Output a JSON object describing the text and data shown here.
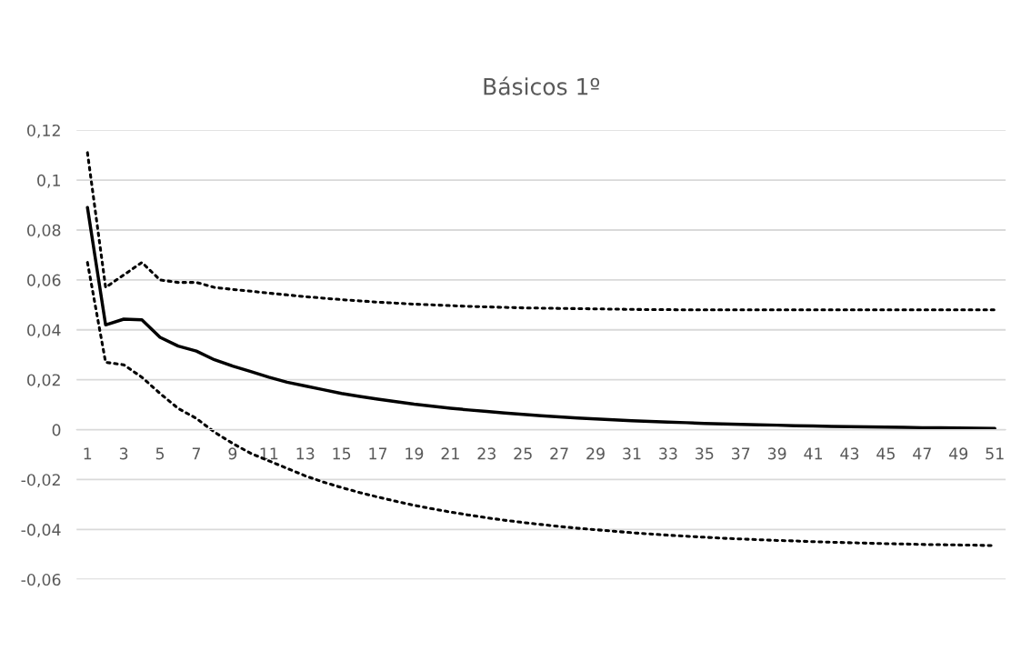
{
  "chart_data": {
    "type": "line",
    "title": "Básicos 1º",
    "categories": [
      "1",
      null,
      "3",
      null,
      "5",
      null,
      "7",
      null,
      "9",
      null,
      "11",
      null,
      "13",
      null,
      "15",
      null,
      "17",
      null,
      "19",
      null,
      "21",
      null,
      "23",
      null,
      "25",
      null,
      "27",
      null,
      "29",
      null,
      "31",
      null,
      "33",
      null,
      "35",
      null,
      "37",
      null,
      "39",
      null,
      "41",
      null,
      "43",
      null,
      "45",
      null,
      "47",
      null,
      "49",
      null,
      "51"
    ],
    "series": [
      {
        "color": "#000000",
        "line_style": "dotted",
        "values": [
          0.111,
          0.057,
          0.062,
          0.067,
          0.06,
          0.059,
          0.059,
          0.057,
          0.0562,
          0.0555,
          0.0547,
          0.054,
          0.0533,
          0.0527,
          0.0521,
          0.0516,
          0.0511,
          0.0507,
          0.0503,
          0.05,
          0.0497,
          0.0494,
          0.0492,
          0.049,
          0.0488,
          0.0487,
          0.0486,
          0.0485,
          0.0484,
          0.0483,
          0.0482,
          0.0481,
          0.0481,
          0.048,
          0.048,
          0.048,
          0.048,
          0.048,
          0.048,
          0.048,
          0.048,
          0.048,
          0.048,
          0.048,
          0.048,
          0.048,
          0.048,
          0.048,
          0.048,
          0.048,
          0.048
        ]
      },
      {
        "color": "#000000",
        "line_style": "solid",
        "values": [
          0.089,
          0.042,
          0.0443,
          0.044,
          0.037,
          0.0335,
          0.0315,
          0.028,
          0.0255,
          0.0233,
          0.021,
          0.019,
          0.0175,
          0.016,
          0.0145,
          0.0133,
          0.0122,
          0.0112,
          0.0102,
          0.0094,
          0.0086,
          0.0079,
          0.0073,
          0.0067,
          0.0061,
          0.0056,
          0.0051,
          0.0047,
          0.0043,
          0.0039,
          0.0036,
          0.0033,
          0.003,
          0.0028,
          0.0025,
          0.0023,
          0.0021,
          0.0019,
          0.0018,
          0.0016,
          0.0015,
          0.0013,
          0.0012,
          0.0011,
          0.001,
          0.0009,
          0.0008,
          0.0008,
          0.0007,
          0.0006,
          0.0005
        ]
      },
      {
        "color": "#000000",
        "line_style": "dotted",
        "values": [
          0.067,
          0.027,
          0.026,
          0.021,
          0.0145,
          0.0085,
          0.0045,
          -0.001,
          -0.0055,
          -0.0095,
          -0.0125,
          -0.0155,
          -0.0185,
          -0.021,
          -0.0232,
          -0.0252,
          -0.027,
          -0.0287,
          -0.0303,
          -0.0317,
          -0.033,
          -0.0342,
          -0.0353,
          -0.0363,
          -0.0372,
          -0.038,
          -0.0388,
          -0.0395,
          -0.0401,
          -0.0407,
          -0.0413,
          -0.0418,
          -0.0423,
          -0.0427,
          -0.0431,
          -0.0435,
          -0.0438,
          -0.0441,
          -0.0444,
          -0.0446,
          -0.0449,
          -0.0451,
          -0.0453,
          -0.0455,
          -0.0457,
          -0.0458,
          -0.046,
          -0.0461,
          -0.0462,
          -0.0463,
          -0.0465
        ]
      }
    ],
    "ylim": [
      -0.06,
      0.12
    ],
    "yticks": [
      {
        "value": -0.06,
        "label": "-0,06"
      },
      {
        "value": -0.04,
        "label": "-0,04"
      },
      {
        "value": -0.02,
        "label": "-0,02"
      },
      0,
      {
        "value": 0.02,
        "label": "0,02"
      },
      {
        "value": 0.04,
        "label": "0,04"
      },
      {
        "value": 0.06,
        "label": "0,06"
      },
      {
        "value": 0.08,
        "label": "0,08"
      },
      {
        "value": 0.1,
        "label": "0,1"
      },
      {
        "value": 0.12,
        "label": "0,12"
      }
    ],
    "grid": "y",
    "legend": false
  }
}
